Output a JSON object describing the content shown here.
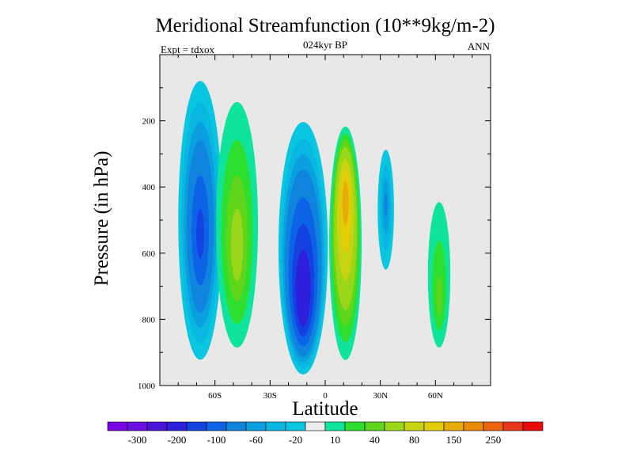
{
  "chart_data": {
    "type": "heatmap",
    "title": "Meridional Streamfunction (10**9kg/m-2)",
    "subtitle": "024kyr BP",
    "left_label": "Expt = tdxox",
    "right_label": "ANN",
    "xlabel": "Latitude",
    "ylabel": "Pressure (in hPa)",
    "xlim": [
      -90,
      90
    ],
    "ylim": [
      1000,
      0
    ],
    "y_inverted": true,
    "x_ticks": [
      {
        "value": -60,
        "label": "60S"
      },
      {
        "value": -30,
        "label": "30S"
      },
      {
        "value": 0,
        "label": "0"
      },
      {
        "value": 30,
        "label": "30N"
      },
      {
        "value": 60,
        "label": "60N"
      }
    ],
    "y_ticks": [
      {
        "value": 200,
        "label": "200"
      },
      {
        "value": 400,
        "label": "400"
      },
      {
        "value": 600,
        "label": "600"
      },
      {
        "value": 800,
        "label": "800"
      },
      {
        "value": 1000,
        "label": "1000"
      }
    ],
    "background_color": "#e8e8e8",
    "colorbar": {
      "colors": [
        "#7a06e6",
        "#6a0fe0",
        "#4a13d8",
        "#2d1fdc",
        "#1342e0",
        "#0d63e6",
        "#0f84de",
        "#0aa0df",
        "#09b7e0",
        "#09c6e0",
        "#ececec",
        "#10e39a",
        "#2fdf2f",
        "#5fd51c",
        "#9ad61a",
        "#c8d412",
        "#e2cc05",
        "#e8ac06",
        "#eb8a09",
        "#ec650d",
        "#e8361a",
        "#ea0a0a"
      ],
      "labels": [
        "-300",
        "-200",
        "-100",
        "-60",
        "-20",
        "10",
        "40",
        "80",
        "150",
        "250"
      ]
    },
    "levels": [
      -300,
      -200,
      -150,
      -100,
      -80,
      -60,
      -40,
      -20,
      -10,
      10,
      20,
      30,
      40,
      60,
      80,
      100,
      150,
      200,
      250,
      300
    ],
    "cells": [
      {
        "name": "sh-polar-cell",
        "lat": -68,
        "width": 14,
        "top": 0,
        "bottom": 985,
        "peak": -90,
        "core_p": 550
      },
      {
        "name": "sh-ferrel-cell",
        "lat": -48,
        "width": 15,
        "top": 0,
        "bottom": 975,
        "peak": 50,
        "core_p": 600
      },
      {
        "name": "southern-hadley-cell",
        "lat": -12,
        "width": 15,
        "top": 140,
        "bottom": 990,
        "peak": -135,
        "core_p": 760
      },
      {
        "name": "northern-hadley-cell",
        "lat": 11,
        "width": 10,
        "top": 190,
        "bottom": 990,
        "peak": 115,
        "core_p": 420
      },
      {
        "name": "nh-ferrel-cell",
        "lat": 33,
        "width": 6,
        "top": 230,
        "bottom": 720,
        "peak": -45,
        "core_p": 450
      },
      {
        "name": "nh-polar-cell",
        "lat": 62,
        "width": 9,
        "top": 300,
        "bottom": 950,
        "peak": 35,
        "core_p": 750
      }
    ]
  }
}
